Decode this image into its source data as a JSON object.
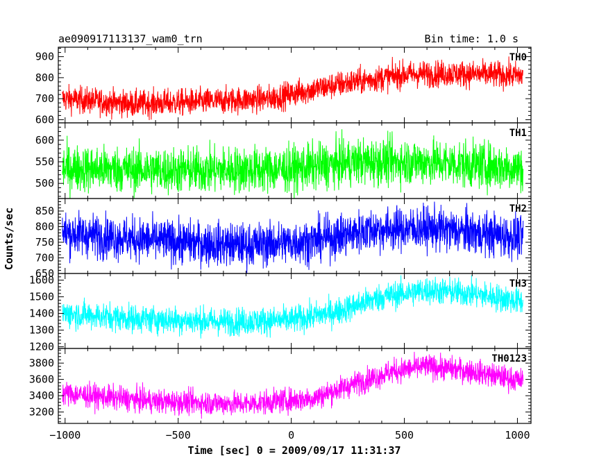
{
  "header": {
    "title": "ae090917113137_wam0_trn",
    "bin_time": "Bin time: 1.0 s"
  },
  "axes": {
    "xlabel": "Time [sec] 0 = 2009/09/17 11:31:37",
    "ylabel": "Counts/sec"
  },
  "chart_data": {
    "type": "line",
    "x_range": [
      -1030,
      1060
    ],
    "x_ticks": [
      -1000,
      -500,
      0,
      500,
      1000
    ],
    "x_tick_labels": [
      "−1000",
      "−500",
      "0",
      "500",
      "1000"
    ],
    "x_data_range": [
      -1012,
      1025
    ],
    "xlabel": "Time [sec] 0 = 2009/09/17 11:31:37",
    "ylabel": "Counts/sec",
    "panels": [
      {
        "name": "TH0",
        "color": "#ff0000",
        "ylim": [
          585,
          945
        ],
        "yticks": [
          600,
          700,
          800,
          900
        ],
        "trend": [
          [
            -1012,
            700
          ],
          [
            -700,
            675
          ],
          [
            -400,
            685
          ],
          [
            -100,
            700
          ],
          [
            100,
            745
          ],
          [
            250,
            775
          ],
          [
            500,
            815
          ],
          [
            700,
            820
          ],
          [
            1025,
            810
          ]
        ],
        "noise": 32
      },
      {
        "name": "TH1",
        "color": "#00ff00",
        "ylim": [
          465,
          640
        ],
        "yticks": [
          500,
          550,
          600
        ],
        "trend": [
          [
            -1012,
            535
          ],
          [
            -500,
            530
          ],
          [
            0,
            533
          ],
          [
            300,
            550
          ],
          [
            600,
            550
          ],
          [
            1025,
            535
          ]
        ],
        "noise": 27
      },
      {
        "name": "TH2",
        "color": "#0000ff",
        "ylim": [
          650,
          890
        ],
        "yticks": [
          650,
          700,
          750,
          800,
          850
        ],
        "trend": [
          [
            -1012,
            780
          ],
          [
            -600,
            755
          ],
          [
            -200,
            740
          ],
          [
            100,
            755
          ],
          [
            350,
            790
          ],
          [
            600,
            795
          ],
          [
            1025,
            765
          ]
        ],
        "noise": 35
      },
      {
        "name": "TH3",
        "color": "#00ffff",
        "ylim": [
          1190,
          1640
        ],
        "yticks": [
          1200,
          1300,
          1400,
          1500,
          1600
        ],
        "trend": [
          [
            -1012,
            1400
          ],
          [
            -700,
            1370
          ],
          [
            -300,
            1350
          ],
          [
            0,
            1360
          ],
          [
            200,
            1410
          ],
          [
            400,
            1500
          ],
          [
            600,
            1540
          ],
          [
            800,
            1520
          ],
          [
            1025,
            1470
          ]
        ],
        "noise": 42
      },
      {
        "name": "TH0123",
        "color": "#ff00ff",
        "ylim": [
          3060,
          3980
        ],
        "yticks": [
          3200,
          3400,
          3600,
          3800
        ],
        "trend": [
          [
            -1012,
            3430
          ],
          [
            -600,
            3330
          ],
          [
            -200,
            3300
          ],
          [
            100,
            3370
          ],
          [
            250,
            3520
          ],
          [
            450,
            3700
          ],
          [
            600,
            3760
          ],
          [
            800,
            3700
          ],
          [
            1025,
            3580
          ]
        ],
        "noise": 75
      }
    ]
  }
}
